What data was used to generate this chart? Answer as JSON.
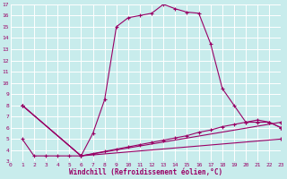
{
  "xlabel": "Windchill (Refroidissement éolien,°C)",
  "xlim": [
    0,
    23
  ],
  "ylim": [
    3,
    17
  ],
  "xtick_labels": [
    "0",
    "1",
    "2",
    "3",
    "4",
    "5",
    "6",
    "7",
    "8",
    "9",
    "10",
    "11",
    "12",
    "13",
    "14",
    "15",
    "16",
    "17",
    "18",
    "19",
    "20",
    "21",
    "22",
    "23"
  ],
  "ytick_labels": [
    "3",
    "4",
    "5",
    "6",
    "7",
    "8",
    "9",
    "10",
    "11",
    "12",
    "13",
    "14",
    "15",
    "16",
    "17"
  ],
  "bg_color": "#c8ecec",
  "line_color": "#990066",
  "grid_color": "#ffffff",
  "series": [
    {
      "x": [
        1,
        2,
        3,
        4,
        5,
        6,
        7,
        8,
        9,
        10,
        11,
        12,
        13,
        14,
        15,
        16,
        17,
        18,
        19,
        20,
        21,
        22,
        23
      ],
      "y": [
        5,
        3.5,
        3.5,
        3.5,
        3.5,
        3.5,
        5.5,
        8.5,
        15.0,
        15.8,
        16.0,
        16.2,
        17.0,
        16.6,
        16.3,
        16.2,
        13.5,
        9.5,
        8.0,
        6.5,
        6.5,
        6.5,
        6.0
      ]
    },
    {
      "x": [
        1,
        6,
        7,
        8,
        9,
        10,
        11,
        12,
        13,
        14,
        15,
        16,
        17,
        18,
        19,
        20,
        21,
        22,
        23
      ],
      "y": [
        8,
        3.5,
        3.7,
        3.9,
        4.1,
        4.3,
        4.5,
        4.7,
        4.9,
        5.1,
        5.3,
        5.6,
        5.8,
        6.1,
        6.3,
        6.5,
        6.7,
        6.5,
        6.0
      ]
    },
    {
      "x": [
        1,
        6,
        23
      ],
      "y": [
        8,
        3.5,
        5.0
      ]
    },
    {
      "x": [
        1,
        6,
        23
      ],
      "y": [
        8,
        3.5,
        6.5
      ]
    }
  ]
}
